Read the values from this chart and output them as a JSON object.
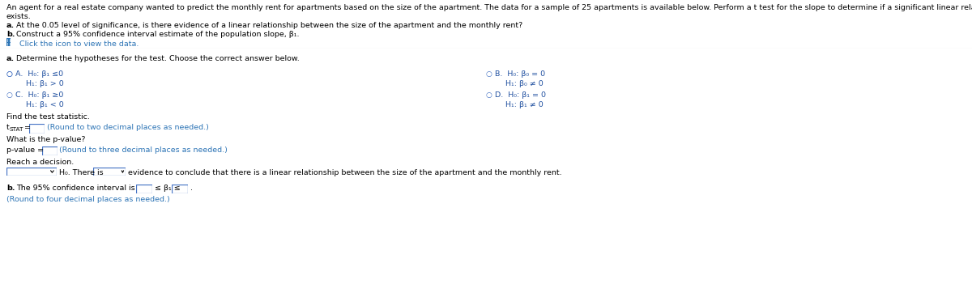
{
  "bg_color": "#ffffff",
  "text_color": "#000000",
  "blue_color": "#2050a0",
  "link_color": "#2e75b6",
  "box_border_color": "#4472c4",
  "radio_color": "#4472c4",
  "divider_color": "#bbbbbb",
  "header1": "An agent for a real estate company wanted to predict the monthly rent for apartments based on the size of the apartment. The data for a sample of 25 apartments is available below. Perform a t test for the slope to determine if a significant linear relationship between the size and the rent",
  "header2": "exists.",
  "line_a": "a. At the 0.05 level of significance, is there evidence of a linear relationship between the size of the apartment and the monthly rent?",
  "line_b": "b. Construct a 95% confidence interval estimate of the population slope, β₁.",
  "click_text": "Click the icon to view the data.",
  "section_a": "a. Determine the hypotheses for the test. Choose the correct answer below.",
  "optA_1": "H₀: β₁ ≤0",
  "optA_2": "H₁: β₁ > 0",
  "optB_1": "H₀: β₀ = 0",
  "optB_2": "H₁: β₀ ≠ 0",
  "optC_1": "H₀: β₁ ≥0",
  "optC_2": "H₁: β₁ < 0",
  "optD_1": "H₀: β₁ = 0",
  "optD_2": "H₁: β₁ ≠ 0",
  "find_stat": "Find the test statistic.",
  "tstat_hint": "(Round to two decimal places as needed.)",
  "pvalue_q": "What is the p-value?",
  "pvalue_hint": "(Round to three decimal places as needed.)",
  "decision_label": "Reach a decision.",
  "decision_middle": "H₀. There is",
  "decision_end": "evidence to conclude that there is a linear relationship between the size of the apartment and the monthly rent.",
  "ci_label": "b. The 95% confidence interval is",
  "ci_middle": "≤ β₁ ≤",
  "ci_end": ".",
  "ci_round": "(Round to four decimal places as needed.)"
}
